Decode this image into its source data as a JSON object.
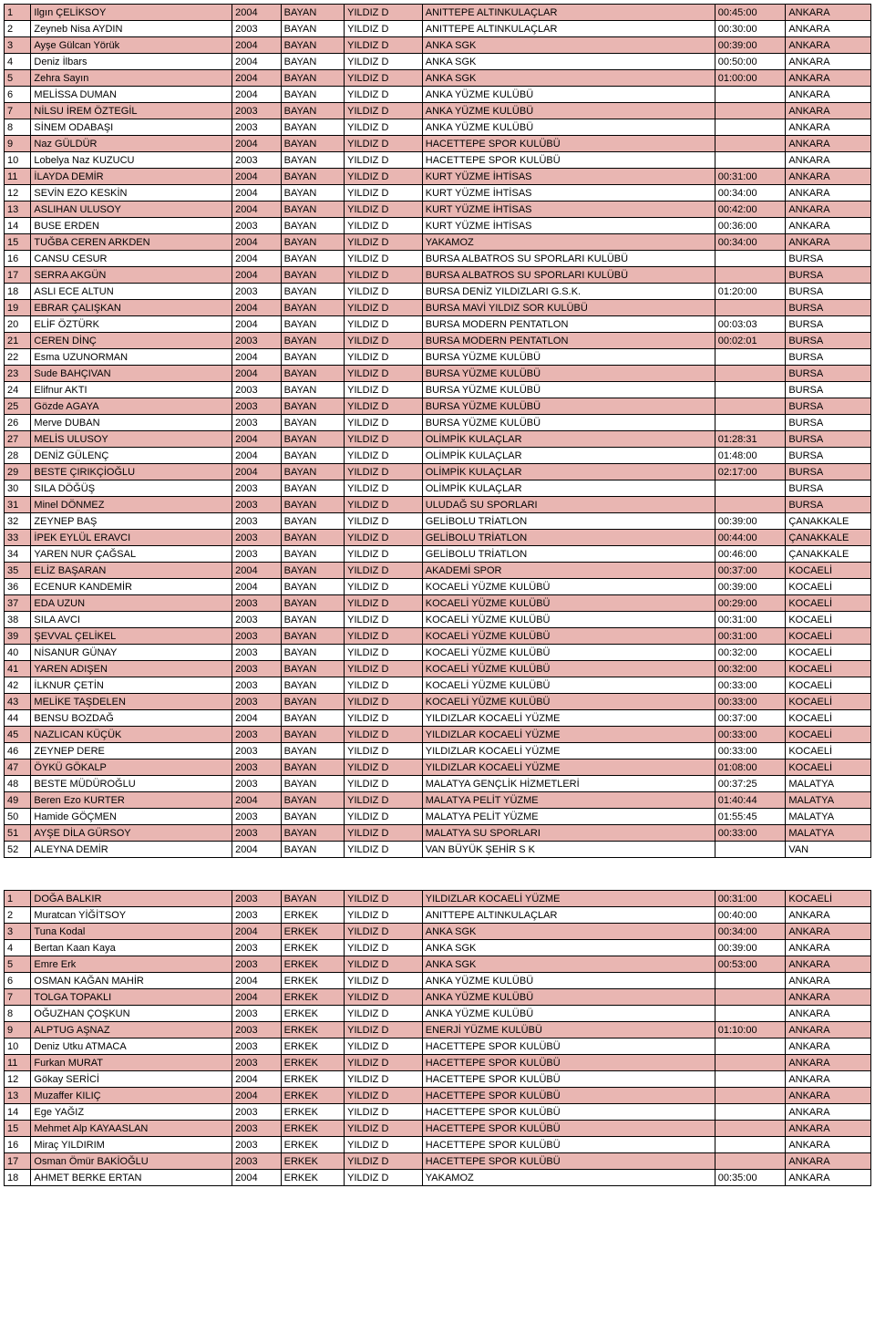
{
  "colors": {
    "pink": "#e9b6b2",
    "white": "#ffffff"
  },
  "rows": [
    {
      "n": "1",
      "name": "Ilgın ÇELİKSOY",
      "year": "2004",
      "gen": "BAYAN",
      "cat": "YILDIZ D",
      "club": "ANITTEPE ALTINKULAÇLAR",
      "time": "00:45:00",
      "city": "ANKARA",
      "bg": "pink"
    },
    {
      "n": "2",
      "name": "Zeyneb Nisa AYDIN",
      "year": "2003",
      "gen": "BAYAN",
      "cat": "YILDIZ D",
      "club": "ANITTEPE ALTINKULAÇLAR",
      "time": "00:30:00",
      "city": "ANKARA",
      "bg": "white"
    },
    {
      "n": "3",
      "name": "Ayşe Gülcan Yörük",
      "year": "2004",
      "gen": "BAYAN",
      "cat": "YILDIZ D",
      "club": "ANKA SGK",
      "time": "00:39:00",
      "city": "ANKARA",
      "bg": "pink"
    },
    {
      "n": "4",
      "name": "Deniz İlbars",
      "year": "2004",
      "gen": "BAYAN",
      "cat": "YILDIZ D",
      "club": "ANKA SGK",
      "time": "00:50:00",
      "city": "ANKARA",
      "bg": "white"
    },
    {
      "n": "5",
      "name": "Zehra Sayın",
      "year": "2004",
      "gen": "BAYAN",
      "cat": "YILDIZ D",
      "club": "ANKA SGK",
      "time": "01:00:00",
      "city": "ANKARA",
      "bg": "pink"
    },
    {
      "n": "6",
      "name": "MELİSSA DUMAN",
      "year": "2004",
      "gen": "BAYAN",
      "cat": "YILDIZ D",
      "club": "ANKA YÜZME KULÜBÜ",
      "time": "",
      "city": "ANKARA",
      "bg": "white"
    },
    {
      "n": "7",
      "name": "NİLSU İREM ÖZTEGİL",
      "year": "2003",
      "gen": "BAYAN",
      "cat": "YILDIZ D",
      "club": "ANKA YÜZME KULÜBÜ",
      "time": "",
      "city": "ANKARA",
      "bg": "pink"
    },
    {
      "n": "8",
      "name": "SİNEM ODABAŞI",
      "year": "2003",
      "gen": "BAYAN",
      "cat": "YILDIZ D",
      "club": "ANKA YÜZME KULÜBÜ",
      "time": "",
      "city": "ANKARA",
      "bg": "white"
    },
    {
      "n": "9",
      "name": "Naz GÜLDÜR",
      "year": "2004",
      "gen": "BAYAN",
      "cat": "YILDIZ D",
      "club": "HACETTEPE SPOR KULÜBÜ",
      "time": "",
      "city": "ANKARA",
      "bg": "pink"
    },
    {
      "n": "10",
      "name": "Lobelya Naz KUZUCU",
      "year": "2003",
      "gen": "BAYAN",
      "cat": "YILDIZ D",
      "club": "HACETTEPE SPOR KULÜBÜ",
      "time": "",
      "city": "ANKARA",
      "bg": "white"
    },
    {
      "n": "11",
      "name": "İLAYDA DEMİR",
      "year": "2004",
      "gen": "BAYAN",
      "cat": "YILDIZ D",
      "club": "KURT YÜZME İHTİSAS",
      "time": "00:31:00",
      "city": "ANKARA",
      "bg": "pink"
    },
    {
      "n": "12",
      "name": "SEVİN EZO KESKİN",
      "year": "2004",
      "gen": "BAYAN",
      "cat": "YILDIZ D",
      "club": "KURT YÜZME İHTİSAS",
      "time": "00:34:00",
      "city": "ANKARA",
      "bg": "white"
    },
    {
      "n": "13",
      "name": "ASLIHAN ULUSOY",
      "year": "2004",
      "gen": "BAYAN",
      "cat": "YILDIZ D",
      "club": "KURT YÜZME İHTİSAS",
      "time": "00:42:00",
      "city": "ANKARA",
      "bg": "pink"
    },
    {
      "n": "14",
      "name": "BUSE ERDEN",
      "year": "2003",
      "gen": "BAYAN",
      "cat": "YILDIZ D",
      "club": "KURT YÜZME İHTİSAS",
      "time": "00:36:00",
      "city": "ANKARA",
      "bg": "white"
    },
    {
      "n": "15",
      "name": "TUĞBA CEREN ARKDEN",
      "year": "2004",
      "gen": "BAYAN",
      "cat": "YILDIZ D",
      "club": "YAKAMOZ",
      "time": "00:34:00",
      "city": "ANKARA",
      "bg": "pink"
    },
    {
      "n": "16",
      "name": "CANSU CESUR",
      "year": "2004",
      "gen": "BAYAN",
      "cat": "YILDIZ D",
      "club": "BURSA ALBATROS SU SPORLARI KULÜBÜ",
      "time": "",
      "city": "BURSA",
      "bg": "white"
    },
    {
      "n": "17",
      "name": "SERRA AKGÜN",
      "year": "2004",
      "gen": "BAYAN",
      "cat": "YILDIZ D",
      "club": "BURSA ALBATROS SU SPORLARI KULÜBÜ",
      "time": "",
      "city": "BURSA",
      "bg": "pink"
    },
    {
      "n": "18",
      "name": "ASLI ECE ALTUN",
      "year": "2003",
      "gen": "BAYAN",
      "cat": "YILDIZ D",
      "club": "BURSA DENİZ YILDIZLARI G.S.K.",
      "time": "01:20:00",
      "city": "BURSA",
      "bg": "white"
    },
    {
      "n": "19",
      "name": "EBRAR ÇALIŞKAN",
      "year": "2004",
      "gen": "BAYAN",
      "cat": "YILDIZ D",
      "club": "BURSA MAVİ YILDIZ SOR KULÜBÜ",
      "time": "",
      "city": "BURSA",
      "bg": "pink"
    },
    {
      "n": "20",
      "name": "ELİF ÖZTÜRK",
      "year": "2004",
      "gen": "BAYAN",
      "cat": "YILDIZ D",
      "club": "BURSA MODERN PENTATLON",
      "time": "00:03:03",
      "city": "BURSA",
      "bg": "white"
    },
    {
      "n": "21",
      "name": "CEREN DİNÇ",
      "year": "2003",
      "gen": "BAYAN",
      "cat": "YILDIZ D",
      "club": "BURSA MODERN PENTATLON",
      "time": "00:02:01",
      "city": "BURSA",
      "bg": "pink"
    },
    {
      "n": "22",
      "name": "Esma UZUNORMAN",
      "year": "2004",
      "gen": "BAYAN",
      "cat": "YILDIZ D",
      "club": "BURSA YÜZME KULÜBÜ",
      "time": "",
      "city": "BURSA",
      "bg": "white"
    },
    {
      "n": "23",
      "name": "Sude BAHÇIVAN",
      "year": "2004",
      "gen": "BAYAN",
      "cat": "YILDIZ D",
      "club": "BURSA YÜZME KULÜBÜ",
      "time": "",
      "city": "BURSA",
      "bg": "pink"
    },
    {
      "n": "24",
      "name": "Elifnur AKTI",
      "year": "2003",
      "gen": "BAYAN",
      "cat": "YILDIZ D",
      "club": "BURSA YÜZME KULÜBÜ",
      "time": "",
      "city": "BURSA",
      "bg": "white"
    },
    {
      "n": "25",
      "name": "Gözde AGAYA",
      "year": "2003",
      "gen": "BAYAN",
      "cat": "YILDIZ D",
      "club": "BURSA YÜZME KULÜBÜ",
      "time": "",
      "city": "BURSA",
      "bg": "pink"
    },
    {
      "n": "26",
      "name": "Merve DUBAN",
      "year": "2003",
      "gen": "BAYAN",
      "cat": "YILDIZ D",
      "club": "BURSA YÜZME KULÜBÜ",
      "time": "",
      "city": "BURSA",
      "bg": "white"
    },
    {
      "n": "27",
      "name": "MELİS ULUSOY",
      "year": "2004",
      "gen": "BAYAN",
      "cat": "YILDIZ D",
      "club": "OLİMPİK KULAÇLAR",
      "time": "01:28:31",
      "city": "BURSA",
      "bg": "pink"
    },
    {
      "n": "28",
      "name": "DENİZ GÜLENÇ",
      "year": "2004",
      "gen": "BAYAN",
      "cat": "YILDIZ D",
      "club": "OLİMPİK KULAÇLAR",
      "time": "01:48:00",
      "city": "BURSA",
      "bg": "white"
    },
    {
      "n": "29",
      "name": "BESTE ÇIRIKÇİOĞLU",
      "year": "2004",
      "gen": "BAYAN",
      "cat": "YILDIZ D",
      "club": "OLİMPİK KULAÇLAR",
      "time": "02:17:00",
      "city": "BURSA",
      "bg": "pink"
    },
    {
      "n": "30",
      "name": "SILA DÖĞÜŞ",
      "year": "2003",
      "gen": "BAYAN",
      "cat": "YILDIZ D",
      "club": "OLİMPİK KULAÇLAR",
      "time": "",
      "city": "BURSA",
      "bg": "white"
    },
    {
      "n": "31",
      "name": "Minel DÖNMEZ",
      "year": "2003",
      "gen": "BAYAN",
      "cat": "YILDIZ D",
      "club": "ULUDAĞ SU SPORLARI",
      "time": "",
      "city": "BURSA",
      "bg": "pink"
    },
    {
      "n": "32",
      "name": "ZEYNEP BAŞ",
      "year": "2003",
      "gen": "BAYAN",
      "cat": "YILDIZ D",
      "club": "GELİBOLU TRİATLON",
      "time": "00:39:00",
      "city": "ÇANAKKALE",
      "bg": "white"
    },
    {
      "n": "33",
      "name": "İPEK EYLÜL ERAVCI",
      "year": "2003",
      "gen": "BAYAN",
      "cat": "YILDIZ D",
      "club": "GELİBOLU TRİATLON",
      "time": "00:44:00",
      "city": "ÇANAKKALE",
      "bg": "pink"
    },
    {
      "n": "34",
      "name": "YAREN NUR ÇAĞSAL",
      "year": "2003",
      "gen": "BAYAN",
      "cat": "YILDIZ D",
      "club": "GELİBOLU TRİATLON",
      "time": "00:46:00",
      "city": "ÇANAKKALE",
      "bg": "white"
    },
    {
      "n": "35",
      "name": "ELİZ BAŞARAN",
      "year": "2004",
      "gen": "BAYAN",
      "cat": "YILDIZ D",
      "club": "AKADEMİ SPOR",
      "time": "00:37:00",
      "city": "KOCAELİ",
      "bg": "pink"
    },
    {
      "n": "36",
      "name": "ECENUR KANDEMİR",
      "year": "2004",
      "gen": "BAYAN",
      "cat": "YILDIZ D",
      "club": "KOCAELİ YÜZME KULÜBÜ",
      "time": "00:39:00",
      "city": "KOCAELİ",
      "bg": "white"
    },
    {
      "n": "37",
      "name": "EDA UZUN",
      "year": "2003",
      "gen": "BAYAN",
      "cat": "YILDIZ D",
      "club": "KOCAELİ YÜZME KULÜBÜ",
      "time": "00:29:00",
      "city": "KOCAELİ",
      "bg": "pink"
    },
    {
      "n": "38",
      "name": "SILA AVCI",
      "year": "2003",
      "gen": "BAYAN",
      "cat": "YILDIZ D",
      "club": "KOCAELİ YÜZME KULÜBÜ",
      "time": "00:31:00",
      "city": "KOCAELİ",
      "bg": "white"
    },
    {
      "n": "39",
      "name": "ŞEVVAL ÇELİKEL",
      "year": "2003",
      "gen": "BAYAN",
      "cat": "YILDIZ D",
      "club": "KOCAELİ YÜZME KULÜBÜ",
      "time": "00:31:00",
      "city": "KOCAELİ",
      "bg": "pink"
    },
    {
      "n": "40",
      "name": "NİSANUR GÜNAY",
      "year": "2003",
      "gen": "BAYAN",
      "cat": "YILDIZ D",
      "club": "KOCAELİ YÜZME KULÜBÜ",
      "time": "00:32:00",
      "city": "KOCAELİ",
      "bg": "white"
    },
    {
      "n": "41",
      "name": "YAREN ADIŞEN",
      "year": "2003",
      "gen": "BAYAN",
      "cat": "YILDIZ D",
      "club": "KOCAELİ YÜZME KULÜBÜ",
      "time": "00:32:00",
      "city": "KOCAELİ",
      "bg": "pink"
    },
    {
      "n": "42",
      "name": "İLKNUR ÇETİN",
      "year": "2003",
      "gen": "BAYAN",
      "cat": "YILDIZ D",
      "club": "KOCAELİ YÜZME KULÜBÜ",
      "time": "00:33:00",
      "city": "KOCAELİ",
      "bg": "white"
    },
    {
      "n": "43",
      "name": "MELİKE TAŞDELEN",
      "year": "2003",
      "gen": "BAYAN",
      "cat": "YILDIZ D",
      "club": "KOCAELİ YÜZME KULÜBÜ",
      "time": "00:33:00",
      "city": "KOCAELİ",
      "bg": "pink"
    },
    {
      "n": "44",
      "name": "BENSU BOZDAĞ",
      "year": "2004",
      "gen": "BAYAN",
      "cat": "YILDIZ D",
      "club": "YILDIZLAR KOCAELİ YÜZME",
      "time": "00:37:00",
      "city": "KOCAELİ",
      "bg": "white"
    },
    {
      "n": "45",
      "name": "NAZLICAN KÜÇÜK",
      "year": "2003",
      "gen": "BAYAN",
      "cat": "YILDIZ D",
      "club": "YILDIZLAR KOCAELİ YÜZME",
      "time": "00:33:00",
      "city": "KOCAELİ",
      "bg": "pink"
    },
    {
      "n": "46",
      "name": "ZEYNEP DERE",
      "year": "2003",
      "gen": "BAYAN",
      "cat": "YILDIZ D",
      "club": "YILDIZLAR KOCAELİ YÜZME",
      "time": "00:33:00",
      "city": "KOCAELİ",
      "bg": "white"
    },
    {
      "n": "47",
      "name": "ÖYKÜ GÖKALP",
      "year": "2003",
      "gen": "BAYAN",
      "cat": "YILDIZ D",
      "club": "YILDIZLAR KOCAELİ YÜZME",
      "time": "01:08:00",
      "city": "KOCAELİ",
      "bg": "pink"
    },
    {
      "n": "48",
      "name": "BESTE MÜDÜROĞLU",
      "year": "2003",
      "gen": "BAYAN",
      "cat": "YILDIZ D",
      "club": "MALATYA GENÇLİK HİZMETLERİ",
      "time": "00:37:25",
      "city": "MALATYA",
      "bg": "white"
    },
    {
      "n": "49",
      "name": "Beren Ezo KURTER",
      "year": "2004",
      "gen": "BAYAN",
      "cat": "YILDIZ D",
      "club": "MALATYA PELİT YÜZME",
      "time": "01:40:44",
      "city": "MALATYA",
      "bg": "pink"
    },
    {
      "n": "50",
      "name": "Hamide GÖÇMEN",
      "year": "2003",
      "gen": "BAYAN",
      "cat": "YILDIZ D",
      "club": "MALATYA PELİT YÜZME",
      "time": "01:55:45",
      "city": "MALATYA",
      "bg": "white"
    },
    {
      "n": "51",
      "name": "AYŞE DİLA GÜRSOY",
      "year": "2003",
      "gen": "BAYAN",
      "cat": "YILDIZ D",
      "club": "MALATYA SU SPORLARI",
      "time": "00:33:00",
      "city": "MALATYA",
      "bg": "pink"
    },
    {
      "n": "52",
      "name": "ALEYNA DEMİR",
      "year": "2004",
      "gen": "BAYAN",
      "cat": "YILDIZ D",
      "club": "VAN BÜYÜK ŞEHİR S K",
      "time": "",
      "city": "VAN",
      "bg": "white"
    },
    {
      "empty": true
    },
    {
      "empty": true
    },
    {
      "n": "1",
      "name": "DOĞA BALKIR",
      "year": "2003",
      "gen": "BAYAN",
      "cat": "YILDIZ D",
      "club": "YILDIZLAR KOCAELİ YÜZME",
      "time": "00:31:00",
      "city": "KOCAELİ",
      "bg": "pink"
    },
    {
      "n": "2",
      "name": "Muratcan YİĞİTSOY",
      "year": "2003",
      "gen": "ERKEK",
      "cat": "YILDIZ D",
      "club": "ANITTEPE ALTINKULAÇLAR",
      "time": "00:40:00",
      "city": "ANKARA",
      "bg": "white"
    },
    {
      "n": "3",
      "name": "Tuna Kodal",
      "year": "2004",
      "gen": "ERKEK",
      "cat": "YILDIZ D",
      "club": "ANKA SGK",
      "time": "00:34:00",
      "city": "ANKARA",
      "bg": "pink"
    },
    {
      "n": "4",
      "name": "Bertan Kaan Kaya",
      "year": "2003",
      "gen": "ERKEK",
      "cat": "YILDIZ D",
      "club": "ANKA SGK",
      "time": "00:39:00",
      "city": "ANKARA",
      "bg": "white"
    },
    {
      "n": "5",
      "name": "Emre Erk",
      "year": "2003",
      "gen": "ERKEK",
      "cat": "YILDIZ D",
      "club": "ANKA SGK",
      "time": "00:53:00",
      "city": "ANKARA",
      "bg": "pink"
    },
    {
      "n": "6",
      "name": "OSMAN KAĞAN MAHİR",
      "year": "2004",
      "gen": "ERKEK",
      "cat": "YILDIZ D",
      "club": "ANKA YÜZME KULÜBÜ",
      "time": "",
      "city": "ANKARA",
      "bg": "white"
    },
    {
      "n": "7",
      "name": "TOLGA TOPAKLI",
      "year": "2004",
      "gen": "ERKEK",
      "cat": "YILDIZ D",
      "club": "ANKA YÜZME KULÜBÜ",
      "time": "",
      "city": "ANKARA",
      "bg": "pink"
    },
    {
      "n": "8",
      "name": "OĞUZHAN ÇOŞKUN",
      "year": "2003",
      "gen": "ERKEK",
      "cat": "YILDIZ D",
      "club": "ANKA YÜZME KULÜBÜ",
      "time": "",
      "city": "ANKARA",
      "bg": "white"
    },
    {
      "n": "9",
      "name": "ALPTUG AŞNAZ",
      "year": "2003",
      "gen": "ERKEK",
      "cat": "YILDIZ D",
      "club": "ENERJİ YÜZME KULÜBÜ",
      "time": "01:10:00",
      "city": "ANKARA",
      "bg": "pink"
    },
    {
      "n": "10",
      "name": "Deniz Utku ATMACA",
      "year": "2003",
      "gen": "ERKEK",
      "cat": "YILDIZ D",
      "club": "HACETTEPE SPOR KULÜBÜ",
      "time": "",
      "city": "ANKARA",
      "bg": "white"
    },
    {
      "n": "11",
      "name": "Furkan MURAT",
      "year": "2003",
      "gen": "ERKEK",
      "cat": "YILDIZ D",
      "club": "HACETTEPE SPOR KULÜBÜ",
      "time": "",
      "city": "ANKARA",
      "bg": "pink"
    },
    {
      "n": "12",
      "name": "Gökay SERİCİ",
      "year": "2004",
      "gen": "ERKEK",
      "cat": "YILDIZ D",
      "club": "HACETTEPE SPOR KULÜBÜ",
      "time": "",
      "city": "ANKARA",
      "bg": "white"
    },
    {
      "n": "13",
      "name": "Muzaffer KILIÇ",
      "year": "2004",
      "gen": "ERKEK",
      "cat": "YILDIZ D",
      "club": "HACETTEPE SPOR KULÜBÜ",
      "time": "",
      "city": "ANKARA",
      "bg": "pink"
    },
    {
      "n": "14",
      "name": "Ege YAĞIZ",
      "year": "2003",
      "gen": "ERKEK",
      "cat": "YILDIZ D",
      "club": "HACETTEPE SPOR KULÜBÜ",
      "time": "",
      "city": "ANKARA",
      "bg": "white"
    },
    {
      "n": "15",
      "name": "Mehmet Alp KAYAASLAN",
      "year": "2003",
      "gen": "ERKEK",
      "cat": "YILDIZ D",
      "club": "HACETTEPE SPOR KULÜBÜ",
      "time": "",
      "city": "ANKARA",
      "bg": "pink"
    },
    {
      "n": "16",
      "name": "Miraç YILDIRIM",
      "year": "2003",
      "gen": "ERKEK",
      "cat": "YILDIZ D",
      "club": "HACETTEPE SPOR KULÜBÜ",
      "time": "",
      "city": "ANKARA",
      "bg": "white"
    },
    {
      "n": "17",
      "name": "Osman Ömür BAKİOĞLU",
      "year": "2003",
      "gen": "ERKEK",
      "cat": "YILDIZ D",
      "club": "HACETTEPE SPOR KULÜBÜ",
      "time": "",
      "city": "ANKARA",
      "bg": "pink"
    },
    {
      "n": "18",
      "name": "AHMET BERKE ERTAN",
      "year": "2004",
      "gen": "ERKEK",
      "cat": "YILDIZ D",
      "club": "YAKAMOZ",
      "time": "00:35:00",
      "city": "ANKARA",
      "bg": "white"
    }
  ]
}
